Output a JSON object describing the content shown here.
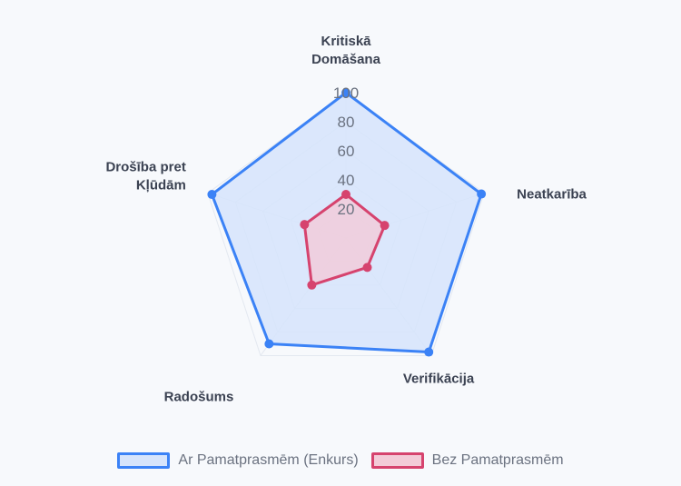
{
  "chart_data": {
    "type": "radar",
    "axes": [
      "Kritiskā Domāšana",
      "Neatkarība",
      "Verifikācija",
      "Radošums",
      "Drošība pret Kļūdām"
    ],
    "axis_label_lines": [
      [
        "Kritiskā",
        "Domāšana"
      ],
      [
        "Neatkarība"
      ],
      [
        "Verifikācija"
      ],
      [
        "Radošums"
      ],
      [
        "Drošība pret",
        "Kļūdām"
      ]
    ],
    "r_range": [
      0,
      100
    ],
    "ticks": [
      20,
      40,
      60,
      80,
      100
    ],
    "tick_labels": [
      "20",
      "40",
      "60",
      "80",
      "100"
    ],
    "grid": true,
    "legend_position": "bottom",
    "series": [
      {
        "name": "Ar Pamatprasmēm (Enkurs)",
        "values": [
          100,
          98,
          97,
          90,
          97
        ],
        "color": "#3b82f6",
        "fill": "#d6e4fb"
      },
      {
        "name": "Bez Pamatprasmēm",
        "values": [
          30,
          28,
          25,
          40,
          30
        ],
        "color": "#d6436e",
        "fill": "#f3cbd8"
      }
    ]
  }
}
